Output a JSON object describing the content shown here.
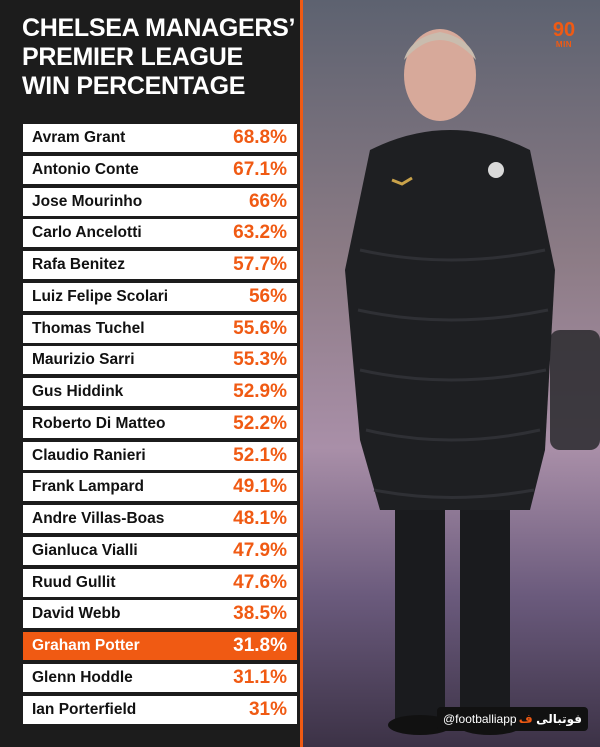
{
  "title": {
    "line1": "CHELSEA MANAGERS’",
    "line2": "PREMIER LEAGUE",
    "line3": "WIN PERCENTAGE"
  },
  "logo": {
    "number": "90",
    "text": "MIN"
  },
  "watermark": {
    "handle": "@footballiapp",
    "brand_text": "فوتبالی",
    "brand_mark": "ف"
  },
  "colors": {
    "accent": "#f05a13",
    "panel": "#1c1c1c",
    "row": "#ffffff"
  },
  "managers": [
    {
      "name": "Avram Grant",
      "win_pct": "68.8%"
    },
    {
      "name": "Antonio Conte",
      "win_pct": "67.1%"
    },
    {
      "name": "Jose Mourinho",
      "win_pct": "66%"
    },
    {
      "name": "Carlo Ancelotti",
      "win_pct": "63.2%"
    },
    {
      "name": "Rafa Benitez",
      "win_pct": "57.7%"
    },
    {
      "name": "Luiz Felipe Scolari",
      "win_pct": "56%"
    },
    {
      "name": "Thomas Tuchel",
      "win_pct": "55.6%"
    },
    {
      "name": "Maurizio Sarri",
      "win_pct": "55.3%"
    },
    {
      "name": "Gus Hiddink",
      "win_pct": "52.9%"
    },
    {
      "name": "Roberto Di Matteo",
      "win_pct": "52.2%"
    },
    {
      "name": "Claudio Ranieri",
      "win_pct": "52.1%"
    },
    {
      "name": "Frank Lampard",
      "win_pct": "49.1%"
    },
    {
      "name": "Andre Villas-Boas",
      "win_pct": "48.1%"
    },
    {
      "name": "Gianluca Vialli",
      "win_pct": "47.9%"
    },
    {
      "name": "Ruud Gullit",
      "win_pct": "47.6%"
    },
    {
      "name": "David Webb",
      "win_pct": "38.5%"
    },
    {
      "name": "Graham Potter",
      "win_pct": "31.8%",
      "highlight": true
    },
    {
      "name": "Glenn Hoddle",
      "win_pct": "31.1%"
    },
    {
      "name": "Ian Porterfield",
      "win_pct": "31%"
    }
  ]
}
